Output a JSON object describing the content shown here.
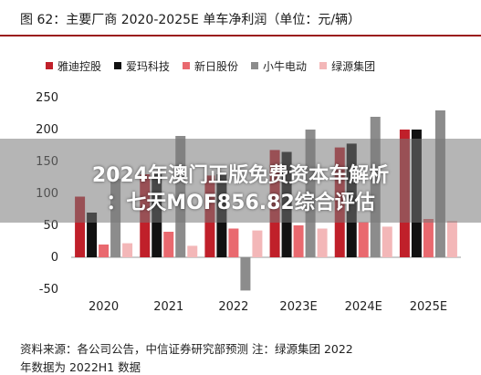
{
  "header": {
    "title": "图 62：主要厂商 2020-2025E 单车净利润（单位：元/辆）"
  },
  "watermark": {
    "line1": "2024年澳门正版免费资本车解析",
    "line2": "：七天MOF856.82综合评估"
  },
  "footer": {
    "source": "资料来源：各公司公告，中信证券研究部预测    注：绿源集团 2022",
    "source_line2": "年数据为 2022H1 数据"
  },
  "chart_data": {
    "type": "bar",
    "categories": [
      "2020",
      "2021",
      "2022",
      "2023E",
      "2024E",
      "2025E"
    ],
    "ylim": [
      -50,
      250
    ],
    "yticks": [
      "250",
      "200",
      "150",
      "100",
      "50",
      "0",
      "-50"
    ],
    "series": [
      {
        "name": "雅迪控股",
        "color": "#c0202a",
        "values": [
          95,
          130,
          128,
          168,
          172,
          200
        ]
      },
      {
        "name": "爱玛科技",
        "color": "#111111",
        "values": [
          70,
          130,
          130,
          165,
          178,
          200
        ]
      },
      {
        "name": "新日股份",
        "color": "#e9696f",
        "values": [
          20,
          40,
          45,
          50,
          55,
          60
        ]
      },
      {
        "name": "小牛电动",
        "color": "#8c8c8c",
        "values": [
          123,
          190,
          -52,
          200,
          220,
          230
        ]
      },
      {
        "name": "绿源集团",
        "color": "#f3b7b8",
        "values": [
          22,
          18,
          42,
          45,
          48,
          57
        ]
      }
    ]
  }
}
